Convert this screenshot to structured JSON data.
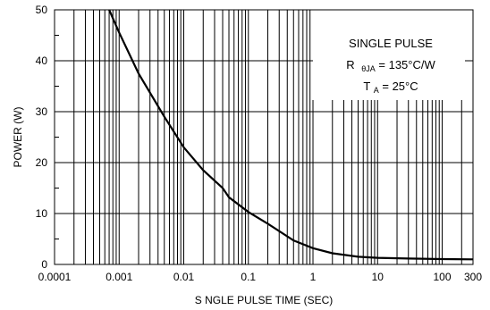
{
  "chart_data": {
    "type": "line",
    "title": "",
    "xlabel": "S NGLE PULSE TIME (SEC)",
    "ylabel": "POWER (W)",
    "xscale": "log",
    "xlim": [
      0.0001,
      300
    ],
    "ylim": [
      0,
      50
    ],
    "x_ticks": [
      {
        "value": 0.0001,
        "label": "0.0001"
      },
      {
        "value": 0.001,
        "label": "0.001"
      },
      {
        "value": 0.01,
        "label": "0.01"
      },
      {
        "value": 0.1,
        "label": "0.1"
      },
      {
        "value": 1,
        "label": "1"
      },
      {
        "value": 10,
        "label": "10"
      },
      {
        "value": 100,
        "label": "100"
      },
      {
        "value": 300,
        "label": "300"
      }
    ],
    "y_ticks": [
      {
        "value": 0,
        "label": "0"
      },
      {
        "value": 10,
        "label": "10"
      },
      {
        "value": 20,
        "label": "20"
      },
      {
        "value": 30,
        "label": "30"
      },
      {
        "value": 40,
        "label": "40"
      },
      {
        "value": 50,
        "label": "50"
      }
    ],
    "grid": true,
    "series": [
      {
        "x": [
          0.0007,
          0.001,
          0.002,
          0.005,
          0.01,
          0.02,
          0.04,
          0.05,
          0.1,
          0.2,
          0.5,
          1,
          2,
          5,
          10,
          30,
          100,
          300
        ],
        "y": [
          50,
          45.5,
          37.5,
          29,
          23,
          18.5,
          15,
          13.2,
          10.3,
          8,
          4.7,
          3.2,
          2.2,
          1.5,
          1.3,
          1.15,
          1.05,
          1.0
        ]
      }
    ],
    "annotation": {
      "line1": "SINGLE PULSE",
      "line2_prefix": "R",
      "line2_sub": "θJA",
      "line2_suffix": "= 135°C/W",
      "line3_prefix": "T",
      "line3_sub": "A",
      "line3_suffix": "= 25°C"
    },
    "colors": {
      "line": "#000000",
      "grid": "#000000",
      "background": "#ffffff"
    }
  }
}
